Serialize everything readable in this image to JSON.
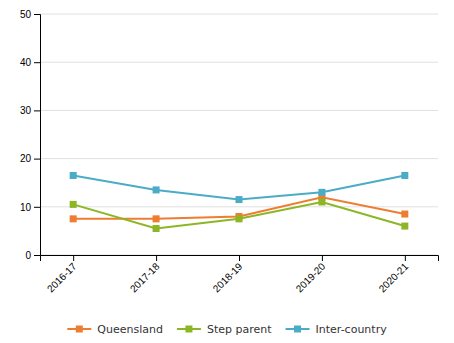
{
  "chart_data": {
    "type": "line",
    "categories": [
      "2016-17",
      "2017-18",
      "2018-19",
      "2019-20",
      "2020-21"
    ],
    "series": [
      {
        "name": "Queensland",
        "color": "#ED7D31",
        "marker": "square",
        "values": [
          7.5,
          7.5,
          8,
          12,
          8.5
        ]
      },
      {
        "name": "Step parent",
        "color": "#8DB626",
        "marker": "square",
        "values": [
          10.5,
          5.5,
          7.5,
          11,
          6
        ]
      },
      {
        "name": "Inter-country",
        "color": "#4BACC6",
        "marker": "square",
        "values": [
          16.5,
          13.5,
          11.5,
          13,
          16.5
        ]
      }
    ],
    "ylim": [
      0,
      50
    ],
    "yticks": [
      0,
      10,
      20,
      30,
      40,
      50
    ],
    "grid": true,
    "legend": "bottom"
  }
}
